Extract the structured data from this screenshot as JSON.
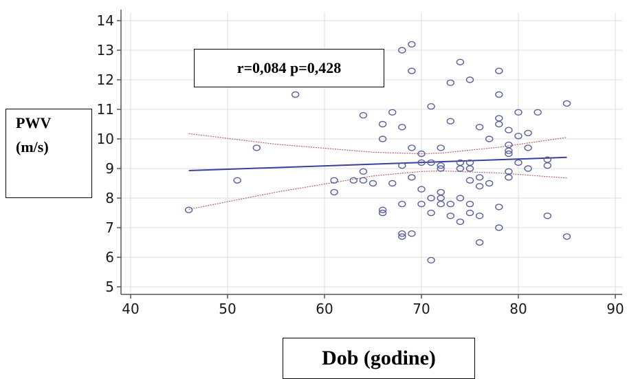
{
  "chart_data": {
    "type": "scatter",
    "xlabel": "Dob (godine)",
    "ylabel_line1": "PWV",
    "ylabel_line2": "(m/s)",
    "annotation": "r=0,084 p=0,428",
    "xlim": [
      40,
      90
    ],
    "ylim": [
      5,
      14
    ],
    "xticks": [
      40,
      50,
      60,
      70,
      80,
      90
    ],
    "yticks": [
      5,
      6,
      7,
      8,
      9,
      10,
      11,
      12,
      13,
      14
    ],
    "grid": true,
    "regression": {
      "intercept": 8.4,
      "slope": 0.0115,
      "x_range": [
        46,
        85
      ]
    },
    "confidence_band": {
      "upper": [
        [
          46,
          10.18
        ],
        [
          55,
          9.82
        ],
        [
          65,
          9.55
        ],
        [
          70,
          9.5
        ],
        [
          72,
          9.52
        ],
        [
          78,
          9.72
        ],
        [
          85,
          10.05
        ]
      ],
      "lower": [
        [
          46,
          7.62
        ],
        [
          55,
          8.2
        ],
        [
          65,
          8.75
        ],
        [
          70,
          8.9
        ],
        [
          72,
          8.92
        ],
        [
          78,
          8.85
        ],
        [
          85,
          8.68
        ]
      ]
    },
    "points": [
      [
        46,
        7.6
      ],
      [
        51,
        8.6
      ],
      [
        53,
        9.7
      ],
      [
        57,
        11.5
      ],
      [
        61,
        8.6
      ],
      [
        61,
        8.2
      ],
      [
        63,
        8.6
      ],
      [
        64,
        8.6
      ],
      [
        64,
        8.9
      ],
      [
        64,
        10.8
      ],
      [
        65,
        8.5
      ],
      [
        66,
        10.5
      ],
      [
        66,
        10.0
      ],
      [
        66,
        7.6
      ],
      [
        66,
        7.5
      ],
      [
        67,
        10.9
      ],
      [
        67,
        8.5
      ],
      [
        68,
        13.0
      ],
      [
        68,
        10.4
      ],
      [
        68,
        9.1
      ],
      [
        68,
        7.8
      ],
      [
        68,
        6.8
      ],
      [
        68,
        6.7
      ],
      [
        69,
        13.2
      ],
      [
        69,
        12.3
      ],
      [
        69,
        9.7
      ],
      [
        69,
        8.7
      ],
      [
        69,
        6.8
      ],
      [
        70,
        9.5
      ],
      [
        70,
        9.2
      ],
      [
        70,
        8.3
      ],
      [
        70,
        7.8
      ],
      [
        71,
        11.1
      ],
      [
        71,
        9.2
      ],
      [
        71,
        8.0
      ],
      [
        71,
        7.5
      ],
      [
        71,
        5.9
      ],
      [
        72,
        9.7
      ],
      [
        72,
        9.1
      ],
      [
        72,
        9.0
      ],
      [
        72,
        8.2
      ],
      [
        72,
        8.0
      ],
      [
        72,
        7.8
      ],
      [
        73,
        11.9
      ],
      [
        73,
        10.6
      ],
      [
        73,
        7.8
      ],
      [
        73,
        7.4
      ],
      [
        74,
        12.6
      ],
      [
        74,
        9.2
      ],
      [
        74,
        9.0
      ],
      [
        74,
        8.0
      ],
      [
        74,
        7.2
      ],
      [
        75,
        12.0
      ],
      [
        75,
        9.2
      ],
      [
        75,
        9.0
      ],
      [
        75,
        8.6
      ],
      [
        75,
        7.8
      ],
      [
        75,
        7.5
      ],
      [
        76,
        10.4
      ],
      [
        76,
        8.7
      ],
      [
        76,
        8.4
      ],
      [
        76,
        7.4
      ],
      [
        76,
        6.5
      ],
      [
        77,
        10.0
      ],
      [
        77,
        8.5
      ],
      [
        78,
        12.3
      ],
      [
        78,
        11.5
      ],
      [
        78,
        10.7
      ],
      [
        78,
        10.5
      ],
      [
        78,
        7.7
      ],
      [
        78,
        7.0
      ],
      [
        79,
        10.3
      ],
      [
        79,
        9.8
      ],
      [
        79,
        9.6
      ],
      [
        79,
        9.5
      ],
      [
        79,
        8.9
      ],
      [
        79,
        8.7
      ],
      [
        80,
        10.9
      ],
      [
        80,
        10.1
      ],
      [
        80,
        9.2
      ],
      [
        81,
        10.2
      ],
      [
        81,
        9.7
      ],
      [
        81,
        9.0
      ],
      [
        82,
        10.9
      ],
      [
        83,
        9.3
      ],
      [
        83,
        9.1
      ],
      [
        83,
        7.4
      ],
      [
        85,
        11.2
      ],
      [
        85,
        6.7
      ]
    ],
    "colors": {
      "points": "#5a5fa0",
      "regression": "#3a3f9a",
      "confidence": "#b46464",
      "grid": "#dedede",
      "axis": "#555555"
    }
  }
}
